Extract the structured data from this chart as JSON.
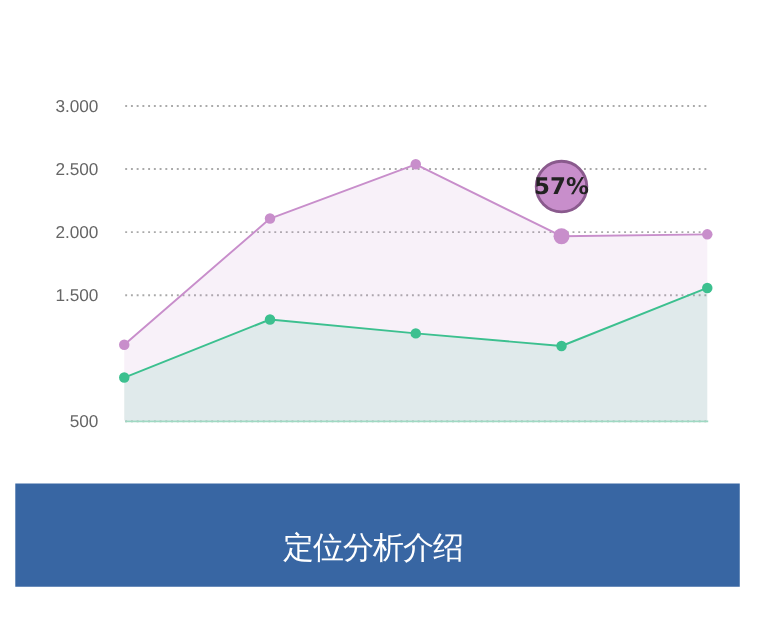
{
  "chart_data": {
    "type": "area",
    "categories": [
      null,
      null,
      null,
      null,
      null
    ],
    "series": [
      {
        "color": "#c88ecb",
        "values": [
          1100,
          2100,
          2530,
          1960,
          1975
        ]
      },
      {
        "color": "#3cc08f",
        "values": [
          840,
          1300,
          1190,
          1090,
          1550
        ]
      }
    ],
    "ylim": [
      500,
      3000
    ],
    "yticks": [
      {
        "value": 3000,
        "label": "3.000"
      },
      {
        "value": 2500,
        "label": "2.500"
      },
      {
        "value": 2000,
        "label": "2.000"
      },
      {
        "value": 1500,
        "label": "1.500"
      },
      500
    ],
    "grid": "y",
    "marker": "circle",
    "tick_labels": "y",
    "annotations": [
      {
        "text": "57%",
        "y": 1960
      },
      "定位分析介绍"
    ]
  }
}
